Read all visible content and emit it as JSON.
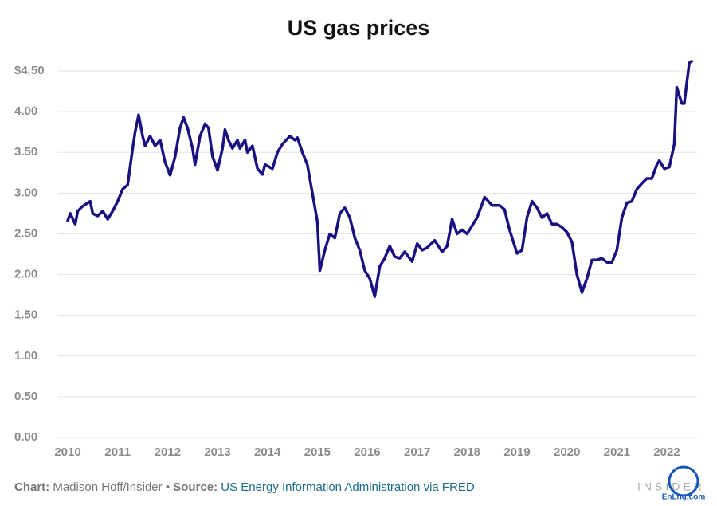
{
  "chart_data": {
    "type": "line",
    "title": "US gas prices",
    "footer": {
      "chart_label": "Chart:",
      "chart_credit": "Madison Hoff/Insider",
      "separator": "•",
      "source_label": "Source:",
      "source": "US Energy Information Administration via FRED"
    },
    "watermarks": [
      "INSIDER",
      "EnLng.com"
    ],
    "xlim": [
      2009.8,
      2022.6
    ],
    "ylim": [
      0,
      4.75
    ],
    "xticks": [
      2010,
      2011,
      2012,
      2013,
      2014,
      2015,
      2016,
      2017,
      2018,
      2019,
      2020,
      2021,
      2022
    ],
    "yticks": [
      {
        "value": 0,
        "label": "0.00"
      },
      {
        "value": 0.5,
        "label": "0.50"
      },
      {
        "value": 1,
        "label": "1.00"
      },
      {
        "value": 1.5,
        "label": "1.50"
      },
      {
        "value": 2,
        "label": "2.00"
      },
      {
        "value": 2.5,
        "label": "2.50"
      },
      {
        "value": 3,
        "label": "3.00"
      },
      {
        "value": 3.5,
        "label": "3.50"
      },
      {
        "value": 4,
        "label": "4.00"
      },
      {
        "value": 4.5,
        "label": "$4.50"
      }
    ],
    "grid": true,
    "x": [
      2010.0,
      2010.05,
      2010.15,
      2010.2,
      2010.3,
      2010.4,
      2010.45,
      2010.5,
      2010.6,
      2010.7,
      2010.8,
      2010.9,
      2011.0,
      2011.1,
      2011.2,
      2011.3,
      2011.35,
      2011.42,
      2011.5,
      2011.55,
      2011.65,
      2011.75,
      2011.85,
      2011.95,
      2012.0,
      2012.05,
      2012.15,
      2012.25,
      2012.32,
      2012.4,
      2012.5,
      2012.55,
      2012.65,
      2012.75,
      2012.82,
      2012.9,
      2013.0,
      2013.1,
      2013.15,
      2013.22,
      2013.3,
      2013.4,
      2013.45,
      2013.55,
      2013.6,
      2013.7,
      2013.8,
      2013.9,
      2013.95,
      2014.1,
      2014.2,
      2014.3,
      2014.45,
      2014.55,
      2014.6,
      2014.7,
      2014.8,
      2014.9,
      2015.0,
      2015.05,
      2015.15,
      2015.25,
      2015.35,
      2015.45,
      2015.55,
      2015.65,
      2015.75,
      2015.85,
      2015.95,
      2016.05,
      2016.15,
      2016.25,
      2016.35,
      2016.45,
      2016.55,
      2016.65,
      2016.75,
      2016.9,
      2017.0,
      2017.1,
      2017.2,
      2017.35,
      2017.5,
      2017.6,
      2017.7,
      2017.8,
      2017.9,
      2018.0,
      2018.1,
      2018.2,
      2018.35,
      2018.5,
      2018.65,
      2018.75,
      2018.85,
      2019.0,
      2019.1,
      2019.2,
      2019.3,
      2019.4,
      2019.5,
      2019.6,
      2019.7,
      2019.8,
      2019.9,
      2020.0,
      2020.1,
      2020.2,
      2020.3,
      2020.4,
      2020.5,
      2020.6,
      2020.7,
      2020.8,
      2020.9,
      2021.0,
      2021.1,
      2021.2,
      2021.3,
      2021.4,
      2021.5,
      2021.6,
      2021.7,
      2021.8,
      2021.85,
      2021.95,
      2022.05,
      2022.15,
      2022.2,
      2022.3,
      2022.35,
      2022.45,
      2022.5
    ],
    "series": [
      {
        "name": "US gas price",
        "color": "#1a1080",
        "values": [
          2.66,
          2.75,
          2.62,
          2.78,
          2.84,
          2.88,
          2.9,
          2.75,
          2.72,
          2.78,
          2.68,
          2.78,
          2.9,
          3.05,
          3.1,
          3.55,
          3.75,
          3.96,
          3.7,
          3.58,
          3.7,
          3.58,
          3.65,
          3.38,
          3.3,
          3.22,
          3.45,
          3.8,
          3.93,
          3.8,
          3.55,
          3.35,
          3.7,
          3.85,
          3.8,
          3.45,
          3.28,
          3.55,
          3.78,
          3.65,
          3.55,
          3.65,
          3.55,
          3.65,
          3.5,
          3.58,
          3.3,
          3.23,
          3.35,
          3.3,
          3.5,
          3.6,
          3.7,
          3.65,
          3.68,
          3.5,
          3.35,
          3.0,
          2.65,
          2.05,
          2.3,
          2.5,
          2.45,
          2.75,
          2.82,
          2.7,
          2.45,
          2.3,
          2.05,
          1.95,
          1.73,
          2.1,
          2.2,
          2.35,
          2.22,
          2.2,
          2.28,
          2.16,
          2.38,
          2.3,
          2.33,
          2.42,
          2.28,
          2.35,
          2.68,
          2.5,
          2.55,
          2.5,
          2.6,
          2.7,
          2.95,
          2.85,
          2.85,
          2.8,
          2.55,
          2.26,
          2.3,
          2.7,
          2.9,
          2.82,
          2.7,
          2.75,
          2.62,
          2.62,
          2.58,
          2.52,
          2.4,
          2.0,
          1.78,
          1.95,
          2.18,
          2.18,
          2.2,
          2.15,
          2.15,
          2.3,
          2.7,
          2.88,
          2.9,
          3.05,
          3.12,
          3.18,
          3.18,
          3.35,
          3.4,
          3.3,
          3.32,
          3.6,
          4.3,
          4.1,
          4.1,
          4.6,
          4.62
        ]
      }
    ]
  }
}
